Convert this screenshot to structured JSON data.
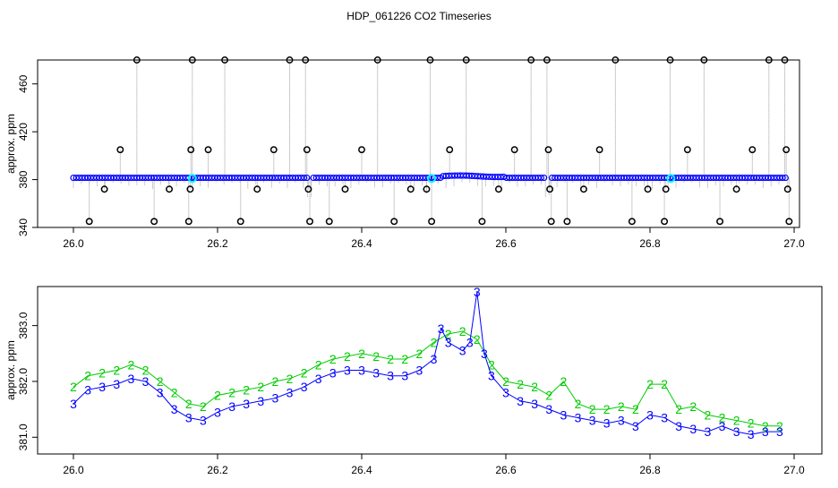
{
  "title": "HDP_061226  CO2 Timeseries",
  "colors": {
    "gray": "#999999",
    "blue": "#0000ff",
    "green": "#00cc00",
    "cyan": "#00ffff",
    "black": "#000000"
  },
  "chart_data": [
    {
      "type": "scatter",
      "ylabel": "approx. ppm",
      "xlim": [
        26.0,
        27.0
      ],
      "ylim": [
        340,
        480
      ],
      "x_ticks": [
        "26.0",
        "26.2",
        "26.4",
        "26.6",
        "26.8",
        "27.0"
      ],
      "y_ticks": [
        "340",
        "380",
        "420",
        "460"
      ],
      "grid": false,
      "series": [
        {
          "style": "gray-lines-blue-points",
          "baseline": 381.5,
          "drops": [
            [
              26.325,
              365
            ],
            [
              26.33,
              365
            ],
            [
              26.49,
              368
            ],
            [
              26.655,
              365
            ],
            [
              26.66,
              367
            ]
          ]
        },
        {
          "style": "black-circles",
          "points": [
            [
              26.022,
              345
            ],
            [
              26.043,
              372
            ],
            [
              26.065,
              405
            ],
            [
              26.088,
              480
            ],
            [
              26.112,
              345
            ],
            [
              26.133,
              372
            ],
            [
              26.16,
              345
            ],
            [
              26.162,
              372
            ],
            [
              26.163,
              405
            ],
            [
              26.165,
              480
            ],
            [
              26.187,
              405
            ],
            [
              26.21,
              480
            ],
            [
              26.232,
              345
            ],
            [
              26.255,
              372
            ],
            [
              26.278,
              405
            ],
            [
              26.3,
              480
            ],
            [
              26.322,
              480
            ],
            [
              26.324,
              405
            ],
            [
              26.326,
              372
            ],
            [
              26.328,
              345
            ],
            [
              26.355,
              345
            ],
            [
              26.377,
              372
            ],
            [
              26.4,
              405
            ],
            [
              26.422,
              480
            ],
            [
              26.445,
              345
            ],
            [
              26.468,
              372
            ],
            [
              26.49,
              372
            ],
            [
              26.495,
              480
            ],
            [
              26.497,
              345
            ],
            [
              26.522,
              405
            ],
            [
              26.545,
              480
            ],
            [
              26.567,
              345
            ],
            [
              26.59,
              372
            ],
            [
              26.612,
              405
            ],
            [
              26.635,
              480
            ],
            [
              26.657,
              480
            ],
            [
              26.659,
              405
            ],
            [
              26.661,
              372
            ],
            [
              26.663,
              345
            ],
            [
              26.685,
              345
            ],
            [
              26.708,
              372
            ],
            [
              26.73,
              405
            ],
            [
              26.752,
              480
            ],
            [
              26.775,
              345
            ],
            [
              26.797,
              372
            ],
            [
              26.82,
              345
            ],
            [
              26.822,
              372
            ],
            [
              26.828,
              480
            ],
            [
              26.852,
              405
            ],
            [
              26.875,
              480
            ],
            [
              26.897,
              345
            ],
            [
              26.92,
              372
            ],
            [
              26.942,
              405
            ],
            [
              26.965,
              480
            ],
            [
              26.987,
              480
            ],
            [
              26.989,
              405
            ],
            [
              26.991,
              372
            ],
            [
              26.993,
              345
            ]
          ]
        },
        {
          "style": "cyan-circles",
          "points": [
            [
              26.165,
              381
            ],
            [
              26.497,
              381
            ],
            [
              26.829,
              381
            ]
          ]
        }
      ]
    },
    {
      "type": "line",
      "ylabel": "approx. ppm",
      "xlim": [
        26.0,
        27.0
      ],
      "ylim": [
        380.7,
        383.7
      ],
      "x_ticks": [
        "26.0",
        "26.2",
        "26.4",
        "26.6",
        "26.8",
        "27.0"
      ],
      "y_ticks": [
        "381.0",
        "382.0",
        "383.0"
      ],
      "grid": false,
      "series": [
        {
          "marker": "2",
          "color": "green",
          "x": [
            26.0,
            26.02,
            26.04,
            26.06,
            26.08,
            26.1,
            26.12,
            26.14,
            26.16,
            26.18,
            26.2,
            26.22,
            26.24,
            26.26,
            26.28,
            26.3,
            26.32,
            26.34,
            26.36,
            26.38,
            26.4,
            26.42,
            26.44,
            26.46,
            26.48,
            26.5,
            26.52,
            26.54,
            26.56,
            26.58,
            26.6,
            26.62,
            26.64,
            26.66,
            26.68,
            26.7,
            26.72,
            26.74,
            26.76,
            26.78,
            26.8,
            26.82,
            26.84,
            26.86,
            26.88,
            26.9,
            26.92,
            26.94,
            26.96,
            26.98
          ],
          "y": [
            381.9,
            382.1,
            382.15,
            382.2,
            382.3,
            382.2,
            382.0,
            381.8,
            381.6,
            381.55,
            381.75,
            381.8,
            381.85,
            381.9,
            382.0,
            382.05,
            382.15,
            382.3,
            382.4,
            382.45,
            382.5,
            382.45,
            382.4,
            382.4,
            382.5,
            382.7,
            382.85,
            382.9,
            382.75,
            382.3,
            382.0,
            381.95,
            381.9,
            381.75,
            382.0,
            381.6,
            381.5,
            381.5,
            381.55,
            381.5,
            381.95,
            381.95,
            381.5,
            381.55,
            381.4,
            381.35,
            381.3,
            381.25,
            381.2,
            381.2
          ]
        },
        {
          "marker": "3",
          "color": "blue",
          "x": [
            26.0,
            26.02,
            26.04,
            26.06,
            26.08,
            26.1,
            26.12,
            26.14,
            26.16,
            26.18,
            26.2,
            26.22,
            26.24,
            26.26,
            26.28,
            26.3,
            26.32,
            26.34,
            26.36,
            26.38,
            26.4,
            26.42,
            26.44,
            26.46,
            26.48,
            26.5,
            26.51,
            26.52,
            26.54,
            26.55,
            26.56,
            26.57,
            26.58,
            26.6,
            26.62,
            26.64,
            26.66,
            26.68,
            26.7,
            26.72,
            26.74,
            26.76,
            26.78,
            26.8,
            26.82,
            26.84,
            26.86,
            26.88,
            26.9,
            26.92,
            26.94,
            26.96,
            26.98
          ],
          "y": [
            381.6,
            381.85,
            381.9,
            381.95,
            382.05,
            382.0,
            381.8,
            381.5,
            381.35,
            381.3,
            381.45,
            381.55,
            381.6,
            381.65,
            381.7,
            381.8,
            381.9,
            382.05,
            382.15,
            382.2,
            382.2,
            382.15,
            382.1,
            382.1,
            382.2,
            382.4,
            382.95,
            382.7,
            382.55,
            382.7,
            383.6,
            382.5,
            382.1,
            381.8,
            381.65,
            381.6,
            381.5,
            381.4,
            381.35,
            381.3,
            381.25,
            381.3,
            381.2,
            381.4,
            381.35,
            381.2,
            381.15,
            381.1,
            381.2,
            381.1,
            381.05,
            381.1,
            381.1
          ]
        }
      ]
    }
  ]
}
